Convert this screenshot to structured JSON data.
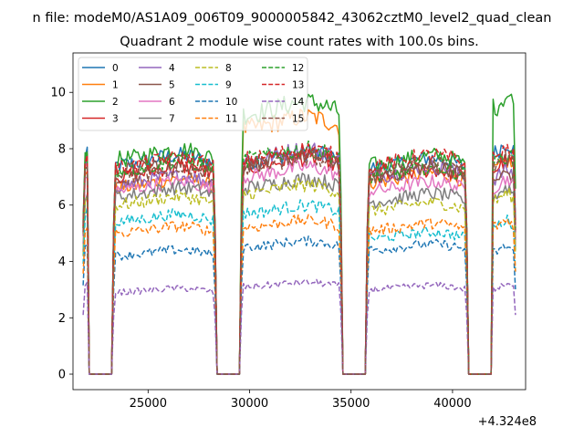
{
  "chart_data": {
    "type": "line",
    "suptitle": "n file: modeM0/AS1A09_006T09_9000005842_43062cztM0_level2_quad_clean",
    "title": "Quadrant 2 module wise count rates with 100.0s bins.",
    "xlabel": "",
    "ylabel": "",
    "x_offset_label": "+4.324e8",
    "xlim": [
      21300,
      43600
    ],
    "ylim": [
      -0.55,
      11.4
    ],
    "xticks": [
      25000,
      30000,
      35000,
      40000
    ],
    "xtick_labels": [
      "25000",
      "30000",
      "35000",
      "40000"
    ],
    "yticks": [
      0,
      2,
      4,
      6,
      8,
      10
    ],
    "ytick_labels": [
      "0",
      "2",
      "4",
      "6",
      "8",
      "10"
    ],
    "x_range": [
      21800,
      43100
    ],
    "bin_size": 100,
    "off_intervals": [
      [
        22100,
        23200
      ],
      [
        28400,
        29500
      ],
      [
        34600,
        35700
      ],
      [
        40800,
        41900
      ]
    ],
    "legend_position": "upper left",
    "series": [
      {
        "name": "0",
        "color": "#1f77b4",
        "linestyle": "solid",
        "levels": [
          7.6,
          7.4,
          7.5,
          7.3,
          7.8
        ]
      },
      {
        "name": "1",
        "color": "#ff7f0e",
        "linestyle": "solid",
        "levels": [
          7.0,
          6.6,
          8.7,
          6.8,
          7.2
        ]
      },
      {
        "name": "2",
        "color": "#2ca02c",
        "linestyle": "solid",
        "levels": [
          7.7,
          7.6,
          9.2,
          7.4,
          9.4
        ]
      },
      {
        "name": "3",
        "color": "#d62728",
        "linestyle": "solid",
        "levels": [
          7.4,
          7.0,
          7.3,
          6.9,
          7.2
        ]
      },
      {
        "name": "4",
        "color": "#9467bd",
        "linestyle": "solid",
        "levels": [
          7.0,
          6.7,
          7.6,
          7.0,
          6.9
        ]
      },
      {
        "name": "5",
        "color": "#8c564b",
        "linestyle": "solid",
        "levels": [
          7.1,
          7.2,
          7.4,
          7.0,
          6.8
        ]
      },
      {
        "name": "6",
        "color": "#e377c2",
        "linestyle": "solid",
        "levels": [
          6.6,
          6.5,
          7.0,
          6.5,
          6.6
        ]
      },
      {
        "name": "7",
        "color": "#7f7f7f",
        "linestyle": "solid",
        "levels": [
          6.2,
          6.3,
          6.6,
          6.1,
          6.3
        ]
      },
      {
        "name": "8",
        "color": "#bcbd22",
        "linestyle": "dashed",
        "levels": [
          6.0,
          6.0,
          6.4,
          5.8,
          6.1
        ]
      },
      {
        "name": "9",
        "color": "#17becf",
        "linestyle": "dashed",
        "levels": [
          5.6,
          5.4,
          5.7,
          4.8,
          5.2
        ]
      },
      {
        "name": "10",
        "color": "#1f77b4",
        "linestyle": "dashed",
        "levels": [
          4.5,
          4.2,
          4.5,
          4.4,
          4.3
        ]
      },
      {
        "name": "11",
        "color": "#ff7f0e",
        "linestyle": "dashed",
        "levels": [
          5.1,
          5.0,
          5.2,
          5.1,
          5.2
        ]
      },
      {
        "name": "12",
        "color": "#2ca02c",
        "linestyle": "dashed",
        "levels": [
          7.4,
          7.2,
          7.6,
          7.0,
          7.4
        ]
      },
      {
        "name": "13",
        "color": "#d62728",
        "linestyle": "dashed",
        "levels": [
          7.5,
          7.3,
          7.6,
          7.4,
          7.6
        ]
      },
      {
        "name": "14",
        "color": "#9467bd",
        "linestyle": "dashed",
        "levels": [
          3.0,
          2.9,
          3.1,
          3.0,
          3.0
        ]
      },
      {
        "name": "15",
        "color": "#8c564b",
        "linestyle": "dashed",
        "levels": [
          7.2,
          6.9,
          7.3,
          7.1,
          7.3
        ]
      }
    ]
  }
}
